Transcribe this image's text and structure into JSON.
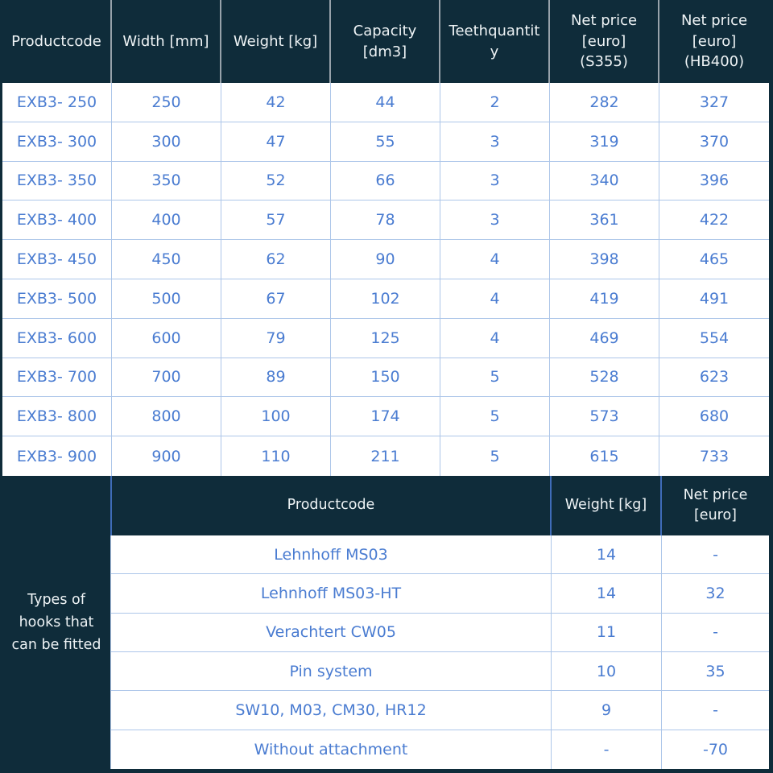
{
  "colors": {
    "header_bg": "#0f2c3a",
    "header_text": "#eef3f5",
    "cell_bg": "#ffffff",
    "cell_text": "#4a7cd1",
    "cell_border": "#adc6e9",
    "header_divider": "#97a2aa",
    "subheader_divider": "#3f6cb8"
  },
  "main_table": {
    "columns": [
      "Productcode",
      "Width [mm]",
      "Weight [kg]",
      "Capacity\n[dm3]",
      "Teethquantity",
      "Net price\n[euro] (S355)",
      "Net price\n[euro]\n(HB400)"
    ],
    "rows": [
      [
        "EXB3- 250",
        "250",
        "42",
        "44",
        "2",
        "282",
        "327"
      ],
      [
        "EXB3- 300",
        "300",
        "47",
        "55",
        "3",
        "319",
        "370"
      ],
      [
        "EXB3- 350",
        "350",
        "52",
        "66",
        "3",
        "340",
        "396"
      ],
      [
        "EXB3- 400",
        "400",
        "57",
        "78",
        "3",
        "361",
        "422"
      ],
      [
        "EXB3- 450",
        "450",
        "62",
        "90",
        "4",
        "398",
        "465"
      ],
      [
        "EXB3- 500",
        "500",
        "67",
        "102",
        "4",
        "419",
        "491"
      ],
      [
        "EXB3- 600",
        "600",
        "79",
        "125",
        "4",
        "469",
        "554"
      ],
      [
        "EXB3- 700",
        "700",
        "89",
        "150",
        "5",
        "528",
        "623"
      ],
      [
        "EXB3- 800",
        "800",
        "100",
        "174",
        "5",
        "573",
        "680"
      ],
      [
        "EXB3- 900",
        "900",
        "110",
        "211",
        "5",
        "615",
        "733"
      ]
    ]
  },
  "hooks_table": {
    "side_label": "Types of\nhooks that\ncan be fitted",
    "columns": [
      "Productcode",
      "Weight [kg]",
      "Net price\n[euro]"
    ],
    "rows": [
      [
        "Lehnhoff MS03",
        "14",
        "-"
      ],
      [
        "Lehnhoff MS03-HT",
        "14",
        "32"
      ],
      [
        "Verachtert CW05",
        "11",
        "-"
      ],
      [
        "Pin system",
        "10",
        "35"
      ],
      [
        "SW10, M03, CM30, HR12",
        "9",
        "-"
      ],
      [
        "Without attachment",
        "-",
        "-70"
      ]
    ]
  },
  "chart_data": [
    {
      "type": "table",
      "columns": [
        "Productcode",
        "Width [mm]",
        "Weight [kg]",
        "Capacity [dm3]",
        "Teethquantity",
        "Net price [euro] (S355)",
        "Net price [euro] (HB400)"
      ],
      "rows": [
        [
          "EXB3- 250",
          250,
          42,
          44,
          2,
          282,
          327
        ],
        [
          "EXB3- 300",
          300,
          47,
          55,
          3,
          319,
          370
        ],
        [
          "EXB3- 350",
          350,
          52,
          66,
          3,
          340,
          396
        ],
        [
          "EXB3- 400",
          400,
          57,
          78,
          3,
          361,
          422
        ],
        [
          "EXB3- 450",
          450,
          62,
          90,
          4,
          398,
          465
        ],
        [
          "EXB3- 500",
          500,
          67,
          102,
          4,
          419,
          491
        ],
        [
          "EXB3- 600",
          600,
          79,
          125,
          4,
          469,
          554
        ],
        [
          "EXB3- 700",
          700,
          89,
          150,
          5,
          528,
          623
        ],
        [
          "EXB3- 800",
          800,
          100,
          174,
          5,
          573,
          680
        ],
        [
          "EXB3- 900",
          900,
          110,
          211,
          5,
          615,
          733
        ]
      ]
    },
    {
      "type": "table",
      "row_group_label": "Types of hooks that can be fitted",
      "columns": [
        "Productcode",
        "Weight [kg]",
        "Net price [euro]"
      ],
      "rows": [
        [
          "Lehnhoff MS03",
          14,
          "-"
        ],
        [
          "Lehnhoff MS03-HT",
          14,
          32
        ],
        [
          "Verachtert CW05",
          11,
          "-"
        ],
        [
          "Pin system",
          10,
          35
        ],
        [
          "SW10, M03, CM30, HR12",
          9,
          "-"
        ],
        [
          "Without attachment",
          "-",
          -70
        ]
      ]
    }
  ]
}
